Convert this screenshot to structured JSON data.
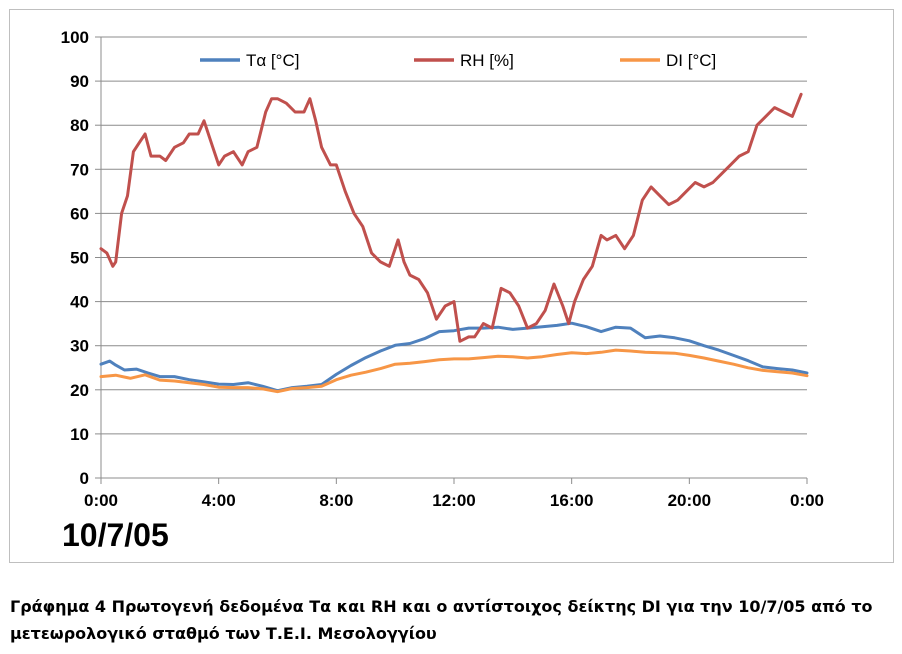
{
  "chart_data": {
    "type": "line",
    "date_label": "10/7/05",
    "x_tick_labels": [
      "0:00",
      "4:00",
      "8:00",
      "12:00",
      "16:00",
      "20:00",
      "0:00"
    ],
    "xlim": [
      0,
      24
    ],
    "ylim": [
      0,
      100
    ],
    "y_ticks": [
      0,
      10,
      20,
      30,
      40,
      50,
      60,
      70,
      80,
      90,
      100
    ],
    "grid": "horizontal",
    "legend_position": "top",
    "series": [
      {
        "name": "Tα [°C]",
        "color": "#4f81bd",
        "x": [
          0,
          0.3,
          0.5,
          0.8,
          1.2,
          1.6,
          2,
          2.5,
          3,
          3.5,
          4,
          4.5,
          5,
          5.5,
          6,
          6.5,
          7,
          7.5,
          8,
          8.5,
          9,
          9.5,
          10,
          10.5,
          11,
          11.5,
          12,
          12.5,
          13,
          13.5,
          14,
          14.5,
          15,
          15.5,
          16,
          16.5,
          17,
          17.5,
          18,
          18.5,
          19,
          19.5,
          20,
          20.5,
          21,
          21.5,
          22,
          22.5,
          23,
          23.5,
          24
        ],
        "y": [
          25.8,
          26.5,
          25.6,
          24.5,
          24.7,
          23.8,
          23,
          23,
          22.3,
          21.8,
          21.3,
          21.2,
          21.6,
          20.8,
          19.8,
          20.5,
          20.8,
          21.2,
          23.5,
          25.5,
          27.3,
          28.8,
          30.1,
          30.5,
          31.6,
          33.2,
          33.4,
          34.0,
          34.0,
          34.2,
          33.7,
          34.0,
          34.3,
          34.6,
          35.1,
          34.3,
          33.2,
          34.2,
          34.0,
          31.8,
          32.2,
          31.8,
          31.1,
          30.0,
          29.0,
          27.8,
          26.6,
          25.2,
          24.8,
          24.5,
          23.8
        ]
      },
      {
        "name": "RH [%]",
        "color": "#c0504d",
        "x": [
          0,
          0.2,
          0.4,
          0.5,
          0.7,
          0.9,
          1.1,
          1.3,
          1.5,
          1.7,
          2,
          2.2,
          2.5,
          2.8,
          3,
          3.3,
          3.5,
          3.8,
          4,
          4.2,
          4.5,
          4.8,
          5,
          5.3,
          5.6,
          5.8,
          6,
          6.3,
          6.6,
          6.9,
          7.1,
          7.3,
          7.5,
          7.8,
          8,
          8.3,
          8.6,
          8.9,
          9.2,
          9.5,
          9.8,
          10.1,
          10.3,
          10.5,
          10.8,
          11.1,
          11.4,
          11.7,
          12,
          12.2,
          12.5,
          12.7,
          13,
          13.3,
          13.6,
          13.9,
          14.2,
          14.5,
          14.8,
          15.1,
          15.4,
          15.7,
          15.9,
          16.1,
          16.4,
          16.7,
          17,
          17.2,
          17.5,
          17.8,
          18.1,
          18.4,
          18.7,
          19,
          19.3,
          19.6,
          19.9,
          20.2,
          20.5,
          20.8,
          21.1,
          21.4,
          21.7,
          22,
          22.3,
          22.6,
          22.9,
          23.2,
          23.5,
          23.8
        ],
        "y": [
          52,
          51,
          48,
          49,
          60,
          64,
          74,
          76,
          78,
          73,
          73,
          72,
          75,
          76,
          78,
          78,
          81,
          75,
          71,
          73,
          74,
          71,
          74,
          75,
          83,
          86,
          86,
          85,
          83,
          83,
          86,
          81,
          75,
          71,
          71,
          65,
          60,
          57,
          51,
          49,
          48,
          54,
          49,
          46,
          45,
          42,
          36,
          39,
          40,
          31,
          32,
          32,
          35,
          34,
          43,
          42,
          39,
          34,
          35,
          38,
          44,
          39,
          35,
          40,
          45,
          48,
          55,
          54,
          55,
          52,
          55,
          63,
          66,
          64,
          62,
          63,
          65,
          67,
          66,
          67,
          69,
          71,
          73,
          74,
          80,
          82,
          84,
          83,
          82,
          87
        ]
      },
      {
        "name": "DI [°C]",
        "color": "#f79646",
        "x": [
          0,
          0.5,
          1,
          1.5,
          2,
          2.5,
          3,
          3.5,
          4,
          4.5,
          5,
          5.5,
          6,
          6.5,
          7,
          7.5,
          8,
          8.5,
          9,
          9.5,
          10,
          10.5,
          11,
          11.5,
          12,
          12.5,
          13,
          13.5,
          14,
          14.5,
          15,
          15.5,
          16,
          16.5,
          17,
          17.5,
          18,
          18.5,
          19,
          19.5,
          20,
          20.5,
          21,
          21.5,
          22,
          22.5,
          23,
          23.5,
          24
        ],
        "y": [
          23,
          23.3,
          22.6,
          23.4,
          22.2,
          22.0,
          21.6,
          21.2,
          20.6,
          20.5,
          20.5,
          20.2,
          19.6,
          20.3,
          20.5,
          20.8,
          22.3,
          23.3,
          24.0,
          24.8,
          25.8,
          26.0,
          26.4,
          26.8,
          27.0,
          27.0,
          27.3,
          27.6,
          27.5,
          27.2,
          27.5,
          28.0,
          28.4,
          28.2,
          28.5,
          29.0,
          28.8,
          28.5,
          28.4,
          28.3,
          27.8,
          27.2,
          26.5,
          25.8,
          25.0,
          24.4,
          24.1,
          23.8,
          23.2
        ]
      }
    ]
  },
  "caption": {
    "line1": "Γράφημα 4 Πρωτογενή δεδομένα Τα και RH και ο αντίστοιχος δείκτης DI για την 10/7/05 από το",
    "line2": "μετεωρολογικό σταθμό των Τ.Ε.Ι. Μεσολογγίου"
  }
}
